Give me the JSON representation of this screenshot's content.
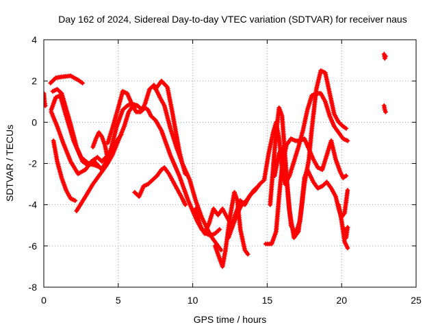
{
  "chart_data": {
    "type": "scatter",
    "title": "Day 162 of 2024, Sidereal Day-to-day VTEC variation (SDTVAR) for receiver naus",
    "xlabel": "GPS time / hours",
    "ylabel": "SDTVAR / TECUs",
    "xlim": [
      0,
      25
    ],
    "ylim": [
      -8,
      4
    ],
    "xticks": [
      "0",
      "5",
      "10",
      "15",
      "20",
      "25"
    ],
    "yticks": [
      "-8",
      "-6",
      "-4",
      "-2",
      "0",
      "2",
      "4"
    ],
    "grid": true,
    "legend": "none",
    "marker": "plus",
    "series_color": "#ff0000",
    "series": [
      {
        "x": [
          0.45,
          0.8,
          1.2,
          1.8,
          2.3,
          2.6
        ],
        "y": [
          1.9,
          2.15,
          2.2,
          2.25,
          2.05,
          1.9
        ]
      },
      {
        "x": [
          0.6,
          0.9,
          1.2,
          1.4,
          1.8,
          2.2,
          2.6,
          3.0,
          3.4,
          3.9,
          4.4,
          4.9,
          5.3,
          5.6,
          5.9,
          6.3
        ],
        "y": [
          1.5,
          1.6,
          1.4,
          0.9,
          -0.1,
          -1.2,
          -1.9,
          -2.1,
          -1.9,
          -2.3,
          -1.6,
          -0.2,
          0.6,
          0.8,
          0.9,
          0.8
        ]
      },
      {
        "x": [
          0.5,
          0.8,
          1.1,
          1.5,
          2.0,
          2.5,
          3.0,
          3.5,
          3.8
        ],
        "y": [
          0.6,
          1.2,
          1.3,
          0.3,
          -0.9,
          -1.7,
          -2.0,
          -2.1,
          -2.2
        ]
      },
      {
        "x": [
          0.5,
          0.9,
          1.3,
          1.8,
          2.3,
          2.8,
          3.2,
          3.6,
          3.9,
          4.3,
          4.8,
          5.2
        ],
        "y": [
          0.5,
          -0.2,
          -1.0,
          -1.9,
          -2.5,
          -2.3,
          -1.9,
          -1.7,
          -1.9,
          -1.6,
          -1.0,
          -0.6
        ]
      },
      {
        "x": [
          0.65,
          0.9,
          1.2,
          1.5,
          1.8,
          2.1
        ],
        "y": [
          -0.9,
          -1.9,
          -2.7,
          -3.3,
          -3.7,
          -3.8
        ]
      },
      {
        "x": [
          2.2,
          2.8,
          3.3,
          3.8,
          4.2,
          4.6,
          5.0,
          5.4,
          5.7,
          6.0,
          6.3,
          6.6,
          6.8,
          7.1,
          7.4,
          7.6,
          7.8,
          8.1,
          8.5,
          8.9,
          9.3,
          9.8,
          10.2,
          10.6,
          11.0,
          11.3,
          11.6,
          11.9
        ],
        "y": [
          -4.3,
          -3.6,
          -3.0,
          -2.5,
          -2.1,
          -1.6,
          -0.9,
          -0.2,
          0.5,
          0.8,
          0.8,
          0.6,
          0.9,
          1.6,
          1.8,
          1.5,
          1.2,
          0.8,
          -0.3,
          -1.2,
          -2.0,
          -2.8,
          -3.8,
          -4.6,
          -5.2,
          -5.6,
          -5.9,
          -6.2
        ]
      },
      {
        "x": [
          3.3,
          3.5,
          3.7,
          3.9,
          4.1,
          4.3
        ],
        "y": [
          -1.2,
          -0.8,
          -0.5,
          -0.7,
          -1.1,
          -1.8
        ]
      },
      {
        "x": [
          4.3,
          4.6,
          5.0,
          5.3,
          5.6,
          5.9,
          6.2,
          6.5,
          6.8,
          7.0,
          7.2,
          7.5,
          7.9,
          8.2,
          8.5,
          8.8,
          9.1,
          9.4,
          9.7,
          10.0,
          10.3,
          10.6,
          10.9,
          11.2,
          11.5,
          11.8
        ],
        "y": [
          -1.0,
          -0.3,
          0.7,
          1.5,
          1.4,
          0.9,
          0.5,
          0.5,
          0.7,
          0.6,
          0.3,
          0.1,
          -0.4,
          -1.0,
          -1.6,
          -2.1,
          -2.6,
          -3.2,
          -3.8,
          -4.3,
          -4.8,
          -5.2,
          -5.4,
          -5.5,
          -5.4,
          -5.2
        ]
      },
      {
        "x": [
          7.5,
          7.9,
          8.3,
          8.6,
          8.9,
          9.1,
          9.3,
          9.5
        ],
        "y": [
          1.6,
          2.0,
          1.7,
          0.6,
          -0.6,
          -1.4,
          -2.0,
          -2.5
        ]
      },
      {
        "x": [
          6.1,
          6.4,
          6.7,
          7.0,
          7.3,
          7.6,
          7.9,
          8.1,
          8.4,
          8.7,
          9.0,
          9.3,
          9.5
        ],
        "y": [
          -3.4,
          -3.6,
          -3.1,
          -3.0,
          -2.8,
          -2.6,
          -2.3,
          -2.2,
          -2.5,
          -2.9,
          -3.3,
          -3.7,
          -4.0
        ]
      },
      {
        "x": [
          10.2,
          10.5,
          10.8,
          11.1,
          11.4,
          11.7,
          12.0,
          12.3,
          12.6,
          12.9,
          13.2,
          13.5,
          13.8,
          14.1,
          14.4
        ],
        "y": [
          -4.2,
          -5.0,
          -5.4,
          -4.9,
          -4.2,
          -4.5,
          -4.2,
          -4.6,
          -5.0,
          -4.4,
          -3.8,
          -4.0,
          -3.6,
          -3.3,
          -3.1
        ]
      },
      {
        "x": [
          11.5,
          11.8,
          12.0,
          12.2,
          12.5,
          12.8,
          13.0,
          13.2,
          13.5,
          13.7
        ],
        "y": [
          -6.0,
          -6.6,
          -7.0,
          -6.2,
          -4.6,
          -3.4,
          -3.8,
          -5.2,
          -6.2,
          -6.4
        ]
      },
      {
        "x": [
          12.4,
          12.7,
          13.0,
          13.3,
          13.6,
          13.9,
          14.2,
          14.5,
          14.8,
          15.1,
          15.4,
          15.6,
          15.8,
          16.0,
          16.2,
          16.5,
          16.8,
          17.1,
          17.4,
          17.7,
          18.0,
          18.3,
          18.6,
          18.9,
          19.2,
          19.5,
          19.8,
          20.1,
          20.4
        ],
        "y": [
          -5.6,
          -5.0,
          -4.4,
          -4.0,
          -3.8,
          -3.5,
          -3.3,
          -3.0,
          -2.8,
          -1.5,
          -0.5,
          0.0,
          -0.8,
          -2.2,
          -3.0,
          -2.6,
          -1.9,
          -1.2,
          -0.4,
          0.6,
          1.3,
          1.4,
          1.4,
          1.0,
          0.3,
          -0.2,
          -0.5,
          -0.8,
          -0.9
        ]
      },
      {
        "x": [
          15.2,
          15.4,
          15.6,
          15.8,
          16.0,
          16.2,
          16.4,
          16.6,
          16.9,
          17.2,
          17.5,
          17.8,
          18.0,
          18.3,
          18.6,
          18.9,
          19.2,
          19.5,
          19.8,
          20.1,
          20.3
        ],
        "y": [
          -4.0,
          -2.2,
          -0.5,
          0.7,
          0.3,
          -1.6,
          -3.6,
          -5.0,
          -5.4,
          -4.8,
          -3.0,
          -1.8,
          -0.3,
          1.6,
          2.5,
          2.4,
          1.4,
          0.4,
          0.0,
          -0.2,
          -0.3
        ]
      },
      {
        "x": [
          14.9,
          15.3,
          15.6,
          15.8,
          16.0,
          16.3,
          16.6,
          16.9,
          17.2,
          17.5,
          17.8,
          18.1,
          18.4,
          18.7,
          19.0,
          19.3,
          19.6,
          19.9,
          20.1,
          20.3
        ],
        "y": [
          -5.9,
          -5.9,
          -5.3,
          -3.6,
          -2.1,
          -1.1,
          -0.8,
          -0.9,
          -0.9,
          -0.8,
          -1.3,
          -1.8,
          -2.2,
          -2.3,
          -1.6,
          -0.9,
          -1.8,
          -2.4,
          -2.7,
          -2.6
        ]
      },
      {
        "x": [
          15.5,
          15.8,
          16.1,
          16.3,
          16.5,
          16.8,
          17.1,
          17.3,
          17.5,
          17.7,
          17.9,
          18.1,
          18.4,
          18.7,
          19.0,
          19.3,
          19.6,
          19.8,
          20.0,
          20.2,
          20.4
        ],
        "y": [
          -2.6,
          -1.5,
          -1.2,
          -2.6,
          -4.3,
          -5.6,
          -5.3,
          -4.1,
          -2.7,
          -2.3,
          -2.6,
          -2.9,
          -3.2,
          -3.1,
          -2.9,
          -3.2,
          -3.6,
          -4.2,
          -4.6,
          -4.4,
          -3.3
        ]
      },
      {
        "x": [
          19.8,
          20.0,
          20.2,
          20.4
        ],
        "y": [
          -4.0,
          -4.8,
          -5.8,
          -6.1
        ]
      },
      {
        "x": [
          20.2,
          20.3,
          20.4
        ],
        "y": [
          -5.2,
          -5.6,
          -5.1
        ]
      },
      {
        "x": [
          22.85,
          22.9,
          22.95
        ],
        "y": [
          3.3,
          3.1,
          3.2
        ]
      },
      {
        "x": [
          22.85,
          22.9,
          22.95
        ],
        "y": [
          0.8,
          0.6,
          0.5
        ]
      },
      {
        "x": [
          0.0,
          0.05,
          0.1
        ],
        "y": [
          1.4,
          1.0,
          0.8
        ]
      }
    ]
  }
}
